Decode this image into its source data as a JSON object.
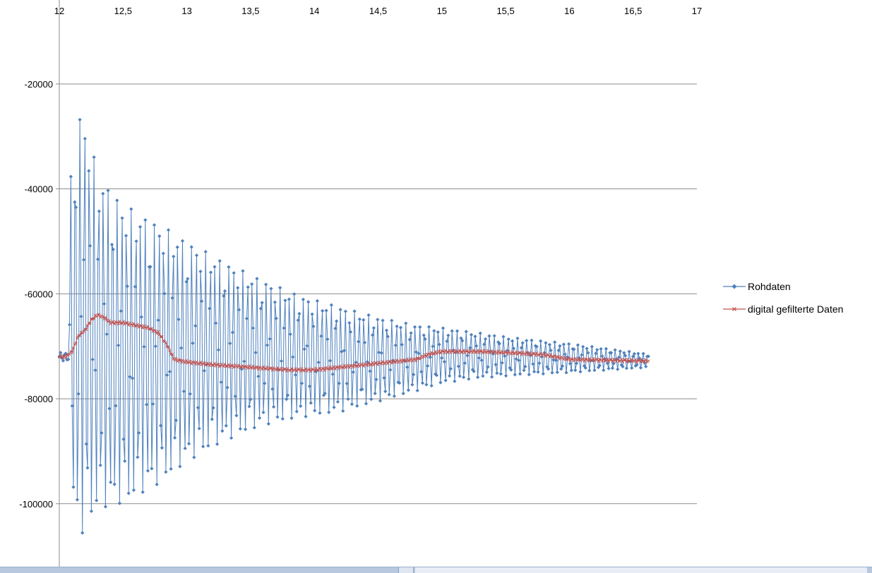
{
  "chart_data": {
    "type": "line",
    "title": "",
    "xlabel": "",
    "ylabel": "",
    "xlim": [
      12,
      17
    ],
    "ylim": [
      -112000,
      -4000
    ],
    "x_ticks": [
      12,
      12.5,
      13,
      13.5,
      14,
      14.5,
      15,
      15.5,
      16,
      16.5,
      17
    ],
    "x_tick_labels": [
      "12",
      "12,5",
      "13",
      "13,5",
      "14",
      "14,5",
      "15",
      "15,5",
      "16",
      "16,5",
      "17"
    ],
    "x_axis_position": "top",
    "y_ticks": [
      -20000,
      -40000,
      -60000,
      -80000,
      -100000
    ],
    "y_tick_labels": [
      "-20000",
      "-40000",
      "-60000",
      "-80000",
      "-100000"
    ],
    "grid": "horizontal",
    "legend_position": "right",
    "series": [
      {
        "name": "Rohdaten",
        "color": "#4f81bd",
        "marker": "diamond",
        "sampling": {
          "x_start": 12.0,
          "x_end": 16.62,
          "samples": 460,
          "period": 0.0365
        },
        "envelope_upper": [
          [
            12.0,
            -72000
          ],
          [
            12.1,
            -33000
          ],
          [
            12.18,
            -24000
          ],
          [
            12.3,
            -37000
          ],
          [
            12.5,
            -43000
          ],
          [
            12.8,
            -47000
          ],
          [
            13.0,
            -50000
          ],
          [
            13.3,
            -54000
          ],
          [
            13.6,
            -57500
          ],
          [
            13.9,
            -60500
          ],
          [
            14.2,
            -62500
          ],
          [
            14.5,
            -64500
          ],
          [
            14.8,
            -66000
          ],
          [
            15.0,
            -66500
          ],
          [
            15.3,
            -67500
          ],
          [
            15.6,
            -68500
          ],
          [
            16.0,
            -69500
          ],
          [
            16.62,
            -71500
          ]
        ],
        "envelope_lower": [
          [
            12.0,
            -72000
          ],
          [
            12.1,
            -102000
          ],
          [
            12.18,
            -106000
          ],
          [
            12.3,
            -101000
          ],
          [
            12.5,
            -100000
          ],
          [
            12.8,
            -96000
          ],
          [
            13.0,
            -92000
          ],
          [
            13.3,
            -88000
          ],
          [
            13.6,
            -85000
          ],
          [
            13.9,
            -83500
          ],
          [
            14.2,
            -82500
          ],
          [
            14.5,
            -80500
          ],
          [
            14.8,
            -78500
          ],
          [
            15.0,
            -77000
          ],
          [
            15.3,
            -76000
          ],
          [
            15.6,
            -75500
          ],
          [
            16.0,
            -75000
          ],
          [
            16.62,
            -74000
          ]
        ]
      },
      {
        "name": "digital gefilterte  Daten",
        "color": "#c0504d",
        "marker": "x",
        "sampling": {
          "x_start": 12.0,
          "x_end": 16.62,
          "samples": 460
        },
        "points": [
          [
            12.0,
            -72000
          ],
          [
            12.05,
            -72000
          ],
          [
            12.1,
            -71000
          ],
          [
            12.15,
            -68000
          ],
          [
            12.2,
            -67000
          ],
          [
            12.25,
            -65000
          ],
          [
            12.3,
            -64000
          ],
          [
            12.35,
            -64500
          ],
          [
            12.4,
            -65500
          ],
          [
            12.5,
            -65500
          ],
          [
            12.6,
            -66000
          ],
          [
            12.7,
            -66500
          ],
          [
            12.78,
            -67500
          ],
          [
            12.85,
            -70000
          ],
          [
            12.9,
            -72500
          ],
          [
            13.0,
            -73000
          ],
          [
            13.2,
            -73500
          ],
          [
            13.5,
            -74000
          ],
          [
            13.8,
            -74500
          ],
          [
            14.0,
            -74500
          ],
          [
            14.2,
            -74000
          ],
          [
            14.4,
            -73500
          ],
          [
            14.6,
            -73000
          ],
          [
            14.8,
            -72500
          ],
          [
            14.9,
            -71500
          ],
          [
            15.0,
            -71000
          ],
          [
            15.3,
            -71000
          ],
          [
            15.6,
            -71300
          ],
          [
            15.8,
            -71600
          ],
          [
            16.0,
            -72500
          ],
          [
            16.62,
            -72800
          ]
        ]
      }
    ]
  },
  "legend": {
    "items": [
      "Rohdaten",
      "digital gefilterte  Daten"
    ]
  }
}
